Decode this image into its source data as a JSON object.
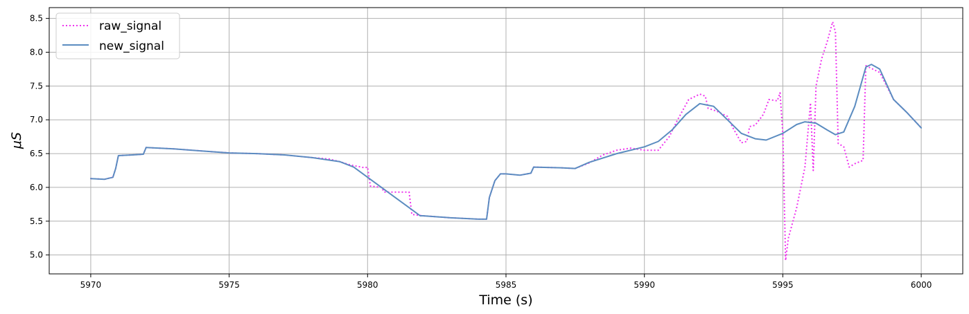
{
  "chart_data": {
    "type": "line",
    "title": "",
    "xlabel": "Time (s)",
    "ylabel": "μS",
    "xlim": [
      5968.5,
      6001.5
    ],
    "ylim": [
      4.72,
      8.66
    ],
    "xticks": [
      5970,
      5975,
      5980,
      5985,
      5990,
      5995,
      6000
    ],
    "yticks": [
      5.0,
      5.5,
      6.0,
      6.5,
      7.0,
      7.5,
      8.0,
      8.5
    ],
    "xtick_labels": [
      "5970",
      "5975",
      "5980",
      "5985",
      "5990",
      "5995",
      "6000"
    ],
    "ytick_labels": [
      "5.0",
      "5.5",
      "6.0",
      "6.5",
      "7.0",
      "7.5",
      "8.0",
      "8.5"
    ],
    "grid": true,
    "legend": {
      "placement": "top-left"
    },
    "series": [
      {
        "name": "raw_signal",
        "color": "#ee33ee",
        "style": "dotted",
        "x": [
          5970.0,
          5970.5,
          5970.8,
          5970.9,
          5971.0,
          5971.5,
          5971.9,
          5972.0,
          5973.0,
          5974.0,
          5975.0,
          5976.0,
          5977.0,
          5978.0,
          5978.6,
          5979.0,
          5979.4,
          5979.9,
          5980.0,
          5980.1,
          5980.5,
          5980.6,
          5981.0,
          5981.5,
          5981.6,
          5982.0,
          5983.0,
          5984.0,
          5984.3,
          5984.4,
          5984.6,
          5984.8,
          5985.0,
          5985.5,
          5985.9,
          5986.0,
          5987.0,
          5987.5,
          5988.0,
          5988.5,
          5989.0,
          5989.5,
          5990.0,
          5990.5,
          5990.9,
          5991.2,
          5991.6,
          5992.0,
          5992.2,
          5992.3,
          5992.6,
          5993.0,
          5993.2,
          5993.5,
          5993.7,
          5993.8,
          5994.0,
          5994.3,
          5994.5,
          5994.8,
          5994.9,
          5995.0,
          5995.1,
          5995.2,
          5995.5,
          5995.8,
          5996.0,
          5996.1,
          5996.2,
          5996.4,
          5996.6,
          5996.8,
          5996.9,
          5997.0,
          5997.2,
          5997.4,
          5997.6,
          5997.9,
          5998.0,
          5998.5,
          5999.0,
          5999.5,
          6000.0
        ],
        "y": [
          6.13,
          6.12,
          6.15,
          6.28,
          6.47,
          6.48,
          6.49,
          6.59,
          6.57,
          6.54,
          6.51,
          6.5,
          6.48,
          6.44,
          6.42,
          6.38,
          6.33,
          6.29,
          6.3,
          6.02,
          6.0,
          5.93,
          5.93,
          5.93,
          5.6,
          5.58,
          5.55,
          5.53,
          5.53,
          5.85,
          6.1,
          6.2,
          6.2,
          6.18,
          6.21,
          6.3,
          6.29,
          6.28,
          6.36,
          6.48,
          6.55,
          6.58,
          6.55,
          6.55,
          6.75,
          7.0,
          7.3,
          7.38,
          7.35,
          7.17,
          7.13,
          7.05,
          6.88,
          6.66,
          6.68,
          6.9,
          6.92,
          7.08,
          7.3,
          7.28,
          7.4,
          6.8,
          4.92,
          5.25,
          5.7,
          6.3,
          7.25,
          6.25,
          7.5,
          7.9,
          8.15,
          8.45,
          8.3,
          6.65,
          6.6,
          6.3,
          6.35,
          6.4,
          7.8,
          7.7,
          7.3,
          7.1,
          6.88
        ]
      },
      {
        "name": "new_signal",
        "color": "#5b8cc0",
        "style": "solid",
        "x": [
          5970.0,
          5970.5,
          5970.8,
          5970.9,
          5971.0,
          5971.5,
          5971.9,
          5972.0,
          5973.0,
          5974.0,
          5975.0,
          5976.0,
          5977.0,
          5978.0,
          5979.0,
          5979.5,
          5980.0,
          5980.5,
          5981.0,
          5981.5,
          5981.9,
          5982.0,
          5983.0,
          5984.0,
          5984.3,
          5984.4,
          5984.6,
          5984.8,
          5985.0,
          5985.5,
          5985.9,
          5986.0,
          5987.0,
          5987.5,
          5988.0,
          5989.0,
          5990.0,
          5990.5,
          5991.0,
          5991.5,
          5992.0,
          5992.5,
          5993.0,
          5993.5,
          5994.0,
          5994.4,
          5995.0,
          5995.5,
          5995.8,
          5996.2,
          5996.6,
          5996.9,
          5997.2,
          5997.6,
          5998.0,
          5998.2,
          5998.5,
          5999.0,
          5999.5,
          6000.0
        ],
        "y": [
          6.13,
          6.12,
          6.15,
          6.28,
          6.47,
          6.48,
          6.49,
          6.59,
          6.57,
          6.54,
          6.51,
          6.5,
          6.48,
          6.44,
          6.38,
          6.3,
          6.15,
          6.0,
          5.85,
          5.7,
          5.58,
          5.58,
          5.55,
          5.53,
          5.53,
          5.85,
          6.1,
          6.2,
          6.2,
          6.18,
          6.21,
          6.3,
          6.29,
          6.28,
          6.37,
          6.5,
          6.6,
          6.68,
          6.85,
          7.08,
          7.24,
          7.2,
          7.0,
          6.8,
          6.72,
          6.7,
          6.8,
          6.93,
          6.97,
          6.95,
          6.85,
          6.78,
          6.82,
          7.2,
          7.78,
          7.82,
          7.75,
          7.3,
          7.1,
          6.88
        ]
      }
    ]
  }
}
